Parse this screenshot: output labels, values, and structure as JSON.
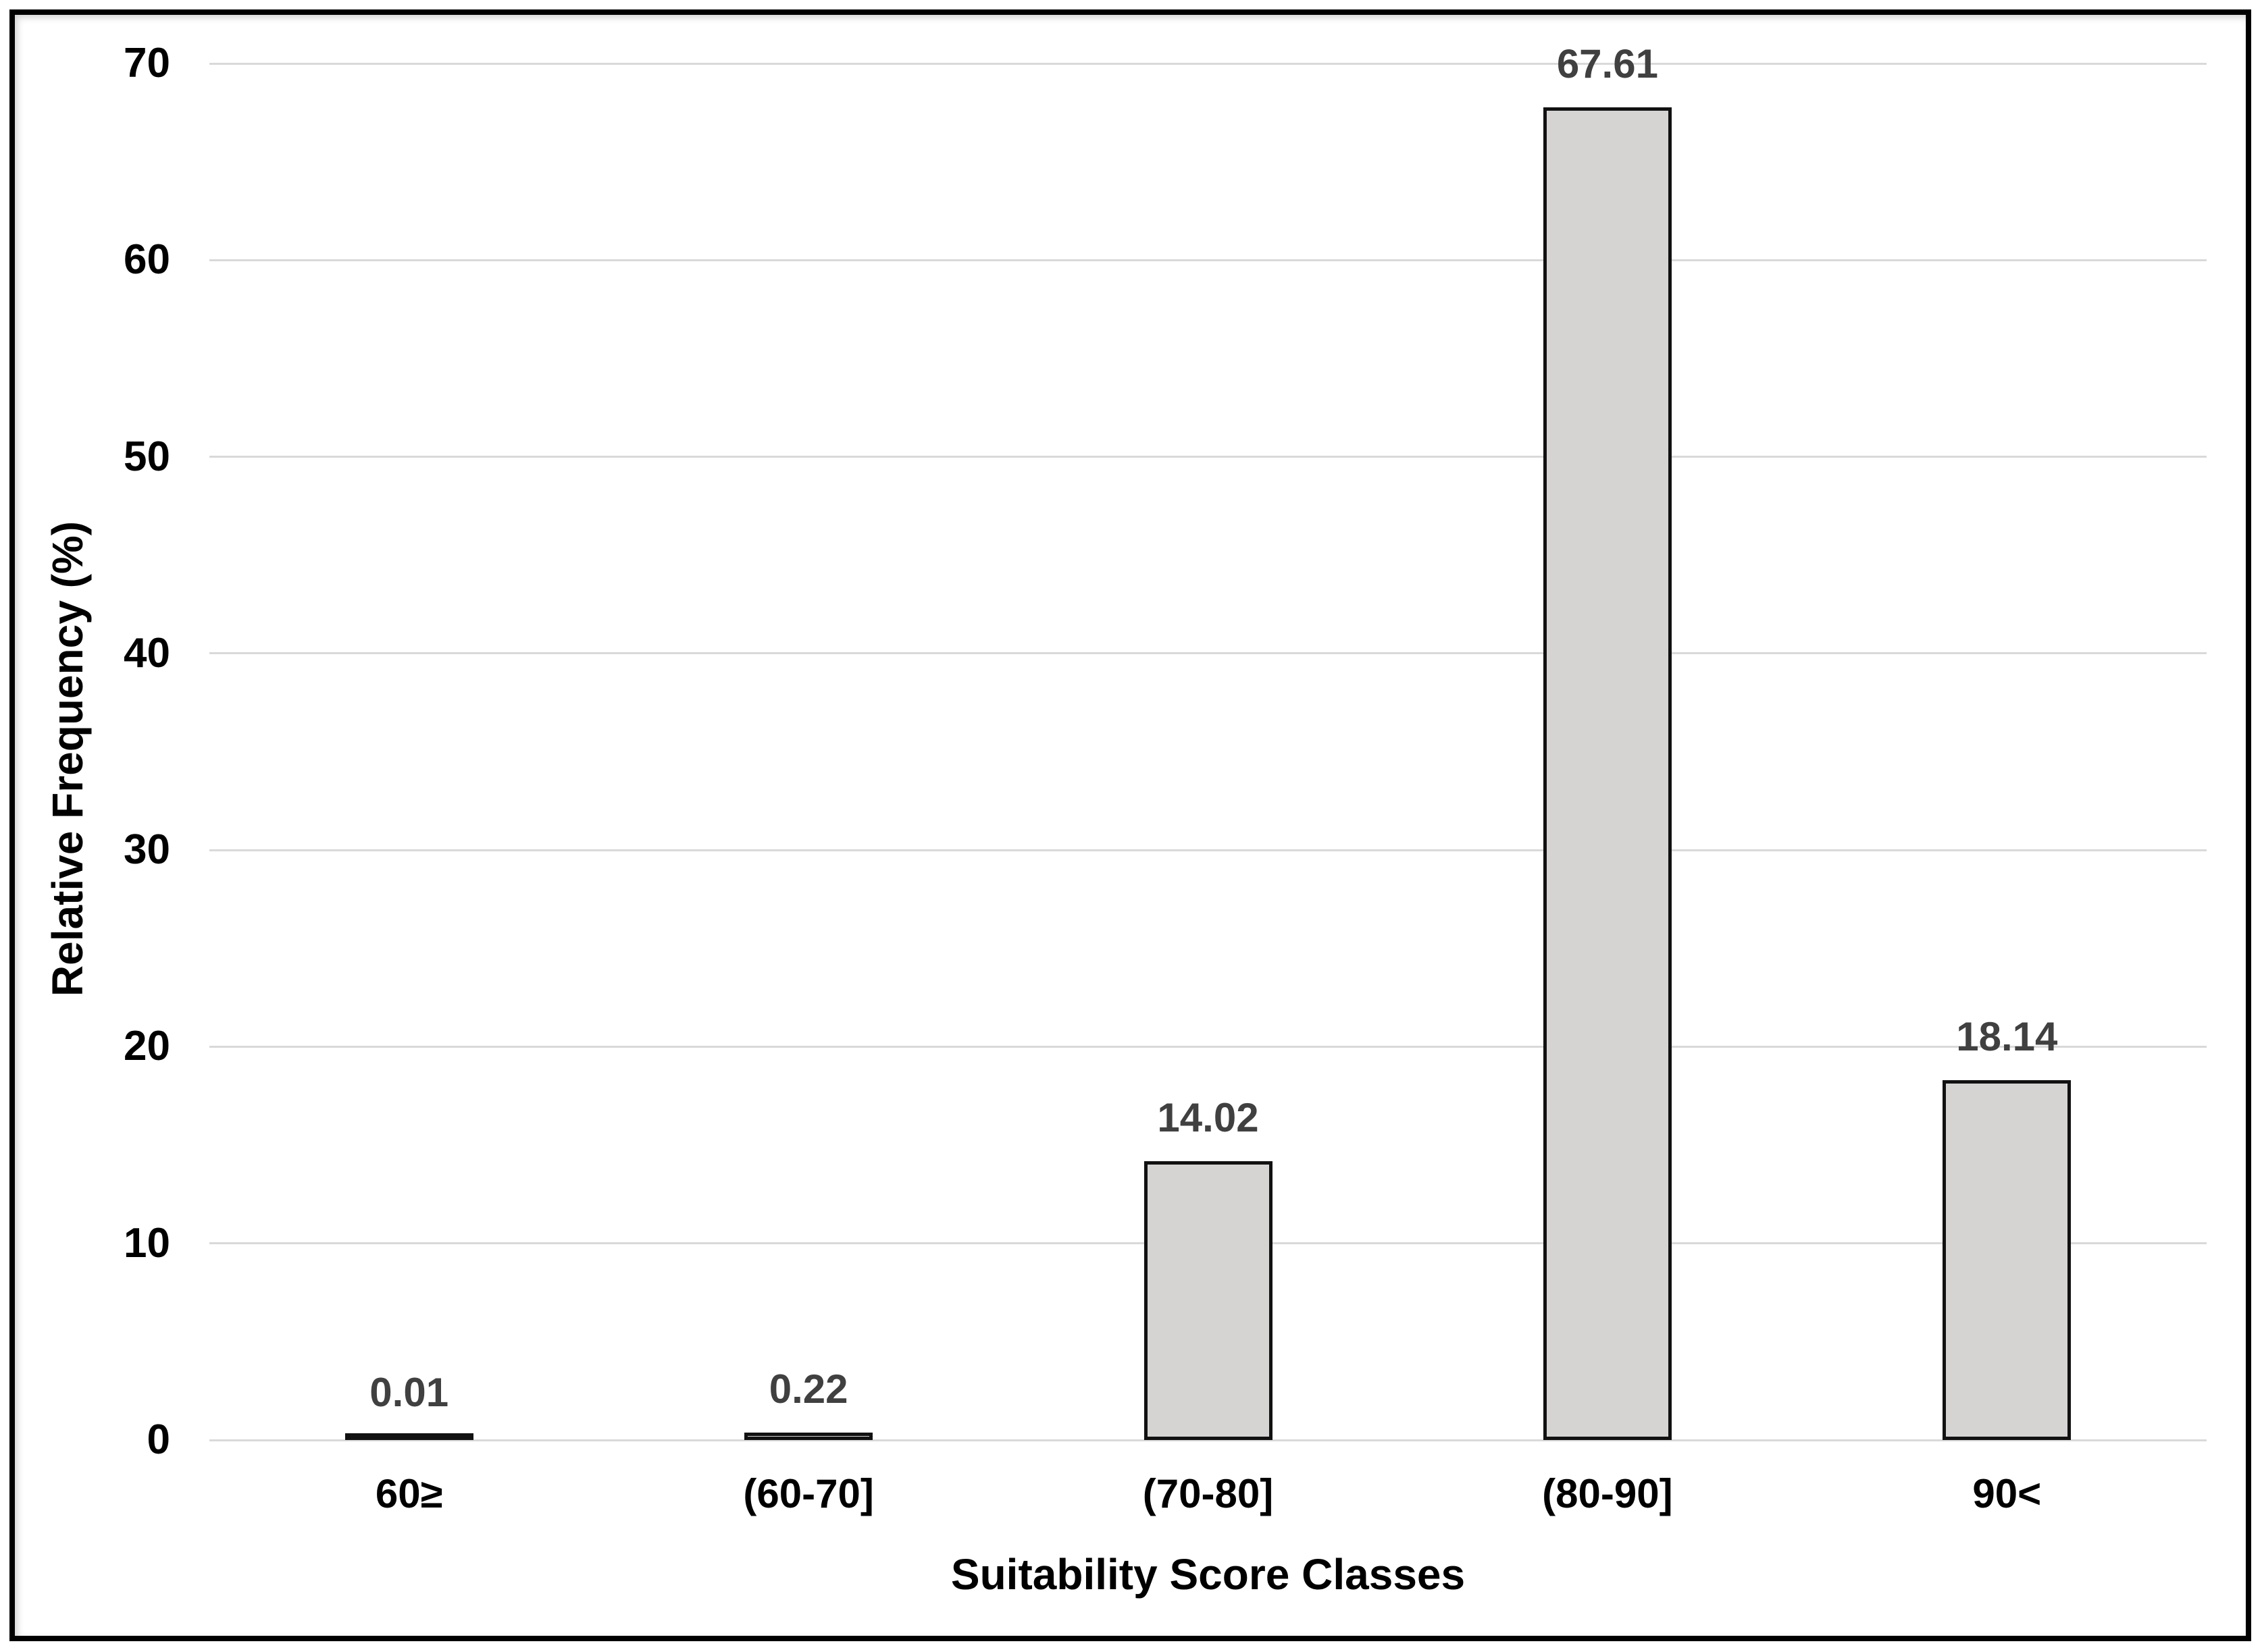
{
  "chart_data": {
    "type": "bar",
    "title": "",
    "xlabel": "Suitability Score Classes",
    "ylabel": "Relative Frequency (%)",
    "categories": [
      "60≥",
      "(60-70]",
      "(70-80]",
      "(80-90]",
      "90<"
    ],
    "values": [
      0.01,
      0.22,
      14.02,
      67.61,
      18.14
    ],
    "value_labels": [
      "0.01",
      "0.22",
      "14.02",
      "67.61",
      "18.14"
    ],
    "ylim": [
      0,
      70
    ],
    "yticks": [
      0,
      10,
      20,
      30,
      40,
      50,
      60,
      70
    ],
    "grid": "horizontal-only",
    "legend": "none",
    "colors": {
      "bar_fill": "#d6d3d3",
      "bar_border": "#111111",
      "gridline": "#d9d9d9",
      "data_label": "#404040",
      "axis_text": "#000000",
      "frame_border": "#000000",
      "background": "#ffffff"
    }
  }
}
